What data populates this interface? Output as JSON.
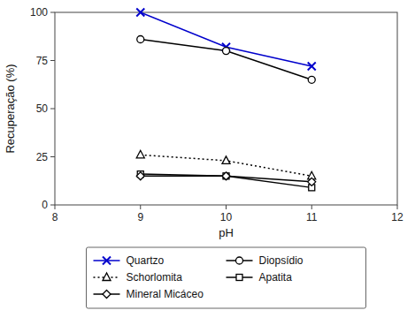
{
  "chart_data": {
    "type": "line",
    "x_label": "pH",
    "y_label": "Recuperação (%)",
    "x": [
      9,
      10,
      11
    ],
    "xlim": [
      8,
      12
    ],
    "ylim": [
      0,
      100
    ],
    "xticks": [
      8,
      9,
      10,
      11,
      12
    ],
    "yticks": [
      0,
      25,
      50,
      75,
      100
    ],
    "grid": false,
    "legend": "bottom",
    "series": [
      {
        "name": "Quartzo",
        "color": "#0000cc",
        "marker": "x",
        "line_style": "solid",
        "values": [
          100,
          82,
          72
        ]
      },
      {
        "name": "Diopsídio",
        "color": "#000000",
        "marker": "circle",
        "line_style": "solid",
        "values": [
          86,
          80,
          65
        ]
      },
      {
        "name": "Schorlomita",
        "color": "#000000",
        "marker": "triangle",
        "line_style": "dotted",
        "values": [
          26,
          23,
          15
        ]
      },
      {
        "name": "Apatita",
        "color": "#000000",
        "marker": "square",
        "line_style": "solid",
        "values": [
          16,
          15,
          9
        ]
      },
      {
        "name": "Mineral Micáceo",
        "color": "#000000",
        "marker": "diamond",
        "line_style": "solid",
        "values": [
          15,
          15,
          12
        ]
      }
    ]
  }
}
